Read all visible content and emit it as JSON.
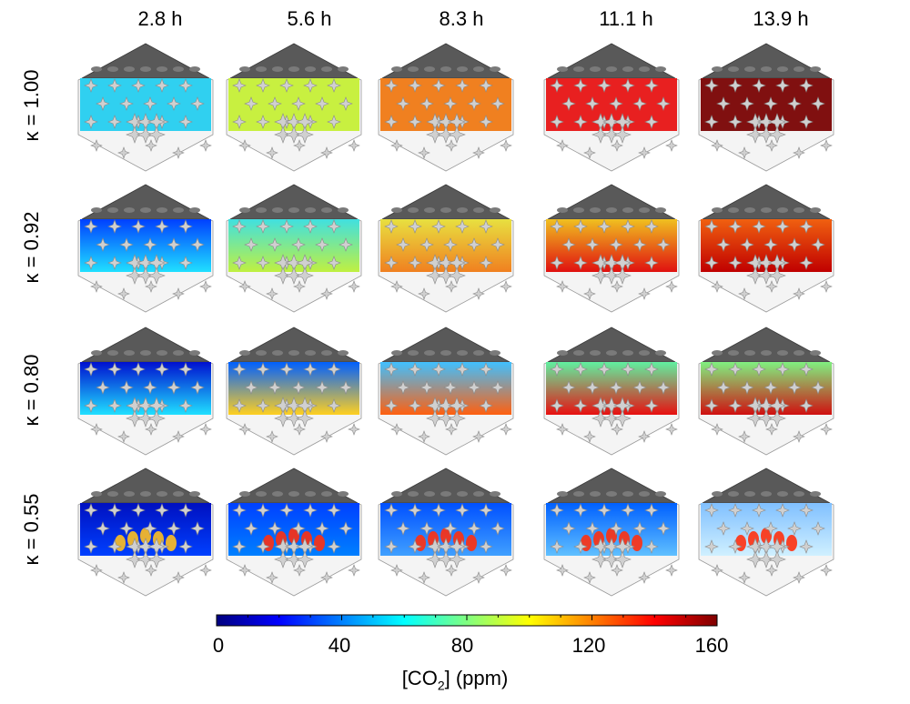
{
  "columns": [
    "2.8 h",
    "5.6 h",
    "8.3 h",
    "11.1 h",
    "13.9 h"
  ],
  "rows": [
    "κ = 1.00",
    "κ = 0.92",
    "κ = 0.80",
    "κ = 0.55"
  ],
  "colorbar": {
    "ticks": [
      "0",
      "40",
      "80",
      "120",
      "160"
    ],
    "title_prefix": "[CO",
    "title_sub": "2",
    "title_suffix": "] (ppm)",
    "stops": [
      "#00007f",
      "#0000ff",
      "#0080ff",
      "#00ffff",
      "#80ff80",
      "#ffff00",
      "#ff8000",
      "#ff0000",
      "#7f0000"
    ]
  },
  "panel_colors": {
    "row0": [
      "#30d0f0",
      "#c8f040",
      "#f08020",
      "#e82020",
      "#801010"
    ],
    "row1": [
      [
        "#0040ff",
        "#20e0ff"
      ],
      [
        "#40e0e0",
        "#c0f040"
      ],
      [
        "#e8e040",
        "#f08020"
      ],
      [
        "#f0c020",
        "#e01010"
      ],
      [
        "#f06010",
        "#c00000"
      ]
    ],
    "row2": [
      [
        "#0010d0",
        "#20e0ff"
      ],
      [
        "#0060ff",
        "#ffd020"
      ],
      [
        "#40c0ff",
        "#ff6010"
      ],
      [
        "#60f0a0",
        "#e81010"
      ],
      [
        "#80f080",
        "#d01010"
      ]
    ],
    "row3": [
      [
        "#0010c0",
        "#0040ff"
      ],
      [
        "#0040ff",
        "#0080ff"
      ],
      [
        "#0050ff",
        "#40a0ff"
      ],
      [
        "#0060ff",
        "#60c0ff"
      ],
      [
        "#80c0ff",
        "#d0f0ff"
      ]
    ]
  }
}
